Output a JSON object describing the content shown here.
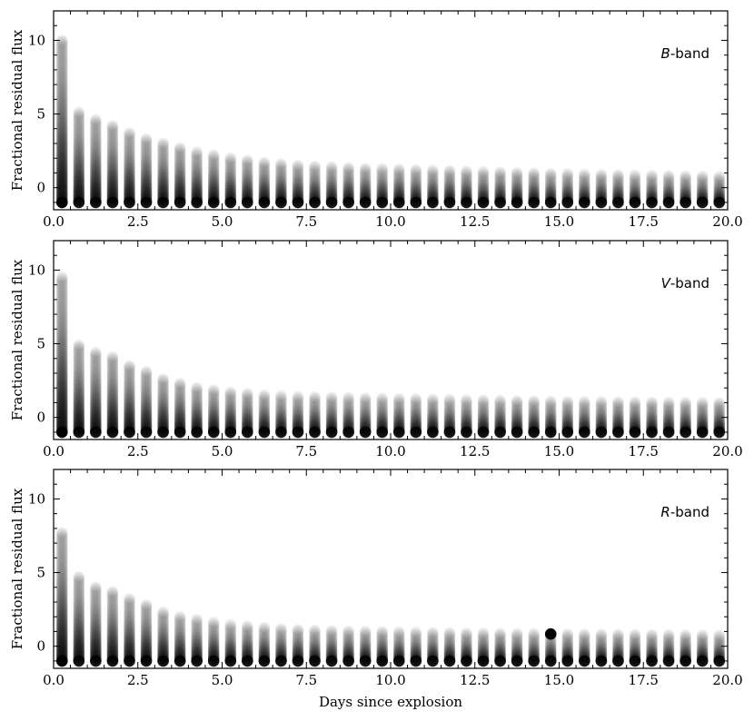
{
  "figure": {
    "xlabel": "Days since explosion"
  },
  "chart_data": [
    {
      "type": "scatter",
      "band_letter": "B",
      "band_suffix": "-band",
      "ylabel": "Fractional residual flux",
      "xlim": [
        0,
        20
      ],
      "ylim": [
        -1.5,
        12
      ],
      "xticks": [
        "0.0",
        "2.5",
        "5.0",
        "7.5",
        "10.0",
        "12.5",
        "15.0",
        "17.5",
        "20.0"
      ],
      "yticks": [
        "0",
        "5",
        "10"
      ],
      "grid": false,
      "marker_color": "#000000",
      "epochs": [
        0.25,
        0.75,
        1.25,
        1.75,
        2.25,
        2.75,
        3.25,
        3.75,
        4.25,
        4.75,
        5.25,
        5.75,
        6.25,
        6.75,
        7.25,
        7.75,
        8.25,
        8.75,
        9.25,
        9.75,
        10.25,
        10.75,
        11.25,
        11.75,
        12.25,
        12.75,
        13.25,
        13.75,
        14.25,
        14.75,
        15.25,
        15.75,
        16.25,
        16.75,
        17.25,
        17.75,
        18.25,
        18.75,
        19.25,
        19.75
      ],
      "lower": -1.0,
      "upper": [
        10.0,
        5.1,
        4.6,
        4.2,
        3.7,
        3.3,
        3.0,
        2.7,
        2.4,
        2.2,
        2.0,
        1.85,
        1.7,
        1.6,
        1.5,
        1.45,
        1.4,
        1.35,
        1.3,
        1.27,
        1.24,
        1.2,
        1.17,
        1.14,
        1.1,
        1.07,
        1.04,
        1.01,
        0.98,
        0.95,
        0.93,
        0.9,
        0.88,
        0.86,
        0.84,
        0.82,
        0.8,
        0.78,
        0.76,
        0.74
      ]
    },
    {
      "type": "scatter",
      "band_letter": "V",
      "band_suffix": "-band",
      "ylabel": "Fractional residual flux",
      "xlim": [
        0,
        20
      ],
      "ylim": [
        -1.5,
        12
      ],
      "xticks": [
        "0.0",
        "2.5",
        "5.0",
        "7.5",
        "10.0",
        "12.5",
        "15.0",
        "17.5",
        "20.0"
      ],
      "yticks": [
        "0",
        "5",
        "10"
      ],
      "grid": false,
      "marker_color": "#000000",
      "epochs": [
        0.25,
        0.75,
        1.25,
        1.75,
        2.25,
        2.75,
        3.25,
        3.75,
        4.25,
        4.75,
        5.25,
        5.75,
        6.25,
        6.75,
        7.25,
        7.75,
        8.25,
        8.75,
        9.25,
        9.75,
        10.25,
        10.75,
        11.25,
        11.75,
        12.25,
        12.75,
        13.25,
        13.75,
        14.25,
        14.75,
        15.25,
        15.75,
        16.25,
        16.75,
        17.25,
        17.75,
        18.25,
        18.75,
        19.25,
        19.75
      ],
      "lower": -1.0,
      "upper": [
        9.5,
        4.9,
        4.4,
        4.1,
        3.5,
        3.1,
        2.6,
        2.3,
        2.0,
        1.85,
        1.7,
        1.6,
        1.5,
        1.45,
        1.4,
        1.38,
        1.35,
        1.33,
        1.3,
        1.28,
        1.26,
        1.24,
        1.22,
        1.2,
        1.18,
        1.16,
        1.14,
        1.12,
        1.1,
        1.08,
        1.07,
        1.06,
        1.05,
        1.04,
        1.03,
        1.02,
        1.01,
        1.0,
        0.99,
        0.98
      ]
    },
    {
      "type": "scatter",
      "band_letter": "R",
      "band_suffix": "-band",
      "ylabel": "Fractional residual flux",
      "xlim": [
        0,
        20
      ],
      "ylim": [
        -1.5,
        12
      ],
      "xticks": [
        "0.0",
        "2.5",
        "5.0",
        "7.5",
        "10.0",
        "12.5",
        "15.0",
        "17.5",
        "20.0"
      ],
      "yticks": [
        "0",
        "5",
        "10"
      ],
      "grid": false,
      "marker_color": "#000000",
      "epochs": [
        0.25,
        0.75,
        1.25,
        1.75,
        2.25,
        2.75,
        3.25,
        3.75,
        4.25,
        4.75,
        5.25,
        5.75,
        6.25,
        6.75,
        7.25,
        7.75,
        8.25,
        8.75,
        9.25,
        9.75,
        10.25,
        10.75,
        11.25,
        11.75,
        12.25,
        12.75,
        13.25,
        13.75,
        14.25,
        14.75,
        15.25,
        15.75,
        16.25,
        16.75,
        17.25,
        17.75,
        18.25,
        18.75,
        19.25,
        19.75
      ],
      "lower": -1.0,
      "upper": [
        7.7,
        4.7,
        4.0,
        3.7,
        3.2,
        2.8,
        2.3,
        2.0,
        1.8,
        1.6,
        1.45,
        1.35,
        1.25,
        1.18,
        1.12,
        1.08,
        1.05,
        1.02,
        1.0,
        0.98,
        0.96,
        0.94,
        0.92,
        0.9,
        0.88,
        0.87,
        0.86,
        0.85,
        0.84,
        0.83,
        0.82,
        0.81,
        0.8,
        0.79,
        0.78,
        0.77,
        0.76,
        0.75,
        0.74,
        0.73
      ]
    }
  ]
}
